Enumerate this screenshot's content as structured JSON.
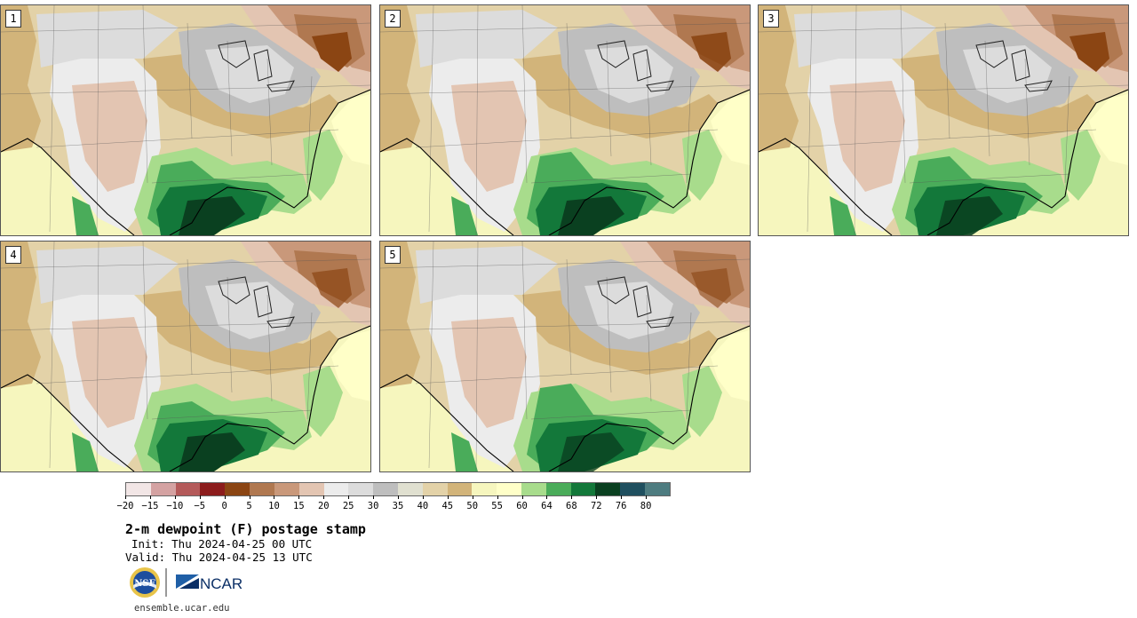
{
  "panels": [
    {
      "label": "1"
    },
    {
      "label": "2"
    },
    {
      "label": "3"
    },
    {
      "label": "4"
    },
    {
      "label": "5"
    }
  ],
  "colorbar": {
    "colors": [
      "#f2e6e6",
      "#d4a2a2",
      "#b45a5a",
      "#8c1c1c",
      "#8b4513",
      "#b07850",
      "#c9987a",
      "#e3c5b2",
      "#ececec",
      "#dcdcdc",
      "#bebebe",
      "#e0e0d0",
      "#e3d2a8",
      "#d2b47a",
      "#f6f6be",
      "#ffffc8",
      "#a8dc8c",
      "#4aac5a",
      "#13783a",
      "#0a4020",
      "#1f4f5f",
      "#4e7c80"
    ],
    "ticks": [
      "−20",
      "−15",
      "−10",
      "−5",
      "0",
      "5",
      "10",
      "15",
      "20",
      "25",
      "30",
      "35",
      "40",
      "45",
      "50",
      "55",
      "60",
      "64",
      "68",
      "72",
      "76",
      "80"
    ]
  },
  "title": "2-m dewpoint (F) postage stamp",
  "init": "Init: Thu 2024-04-25 00 UTC",
  "valid": "Valid: Thu 2024-04-25 13 UTC",
  "logos": {
    "nsf": "NSF",
    "ncar": "NCAR"
  },
  "site": "ensemble.ucar.edu"
}
